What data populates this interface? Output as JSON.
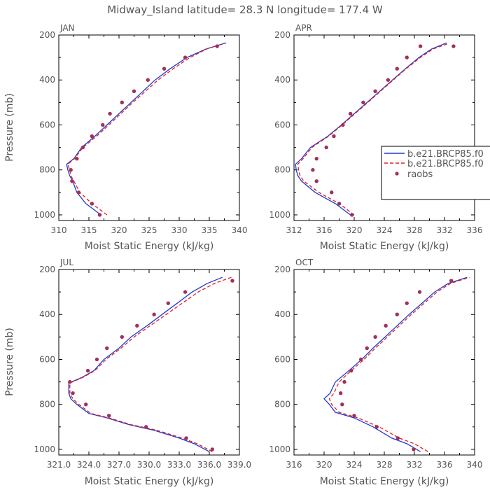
{
  "figure": {
    "title": "Midway_Island  latitude= 28.3 N longitude= 177.4 W"
  },
  "legend": {
    "items": [
      {
        "label": "b.e21.BRCP85.f0",
        "style": "solid",
        "color": "#1f3ad1"
      },
      {
        "label": "b.e21.BRCP85.f0",
        "style": "dashed",
        "color": "#e02020"
      },
      {
        "label": "raobs",
        "style": "dots",
        "color": "#a0305a"
      }
    ]
  },
  "colors": {
    "model1": "#1f3ad1",
    "model2": "#e02020",
    "obs": "#a0305a",
    "axis": "#000000",
    "text": "#555555"
  },
  "chart_data": [
    {
      "type": "line",
      "panel": "JAN",
      "xlabel": "Moist Static Energy (kJ/kg)",
      "ylabel": "Pressure (mb)",
      "xlim": [
        310,
        340
      ],
      "ylim": [
        1025,
        200
      ],
      "xticks": [
        310,
        315,
        320,
        325,
        330,
        335,
        340
      ],
      "xtick_labels": [
        "310",
        "315",
        "320",
        "325",
        "330",
        "335",
        "340"
      ],
      "yticks": [
        200,
        400,
        600,
        800,
        1000
      ],
      "ytick_labels": [
        "200",
        "400",
        "600",
        "800",
        "1000"
      ],
      "series": [
        {
          "role": "model1",
          "points": [
            [
              317.0,
              1000
            ],
            [
              314.5,
              950
            ],
            [
              313.0,
              900
            ],
            [
              312.3,
              850
            ],
            [
              311.8,
              825
            ],
            [
              311.5,
              800
            ],
            [
              311.3,
              775
            ],
            [
              312.5,
              750
            ],
            [
              313.8,
              700
            ],
            [
              316.0,
              650
            ],
            [
              318.0,
              600
            ],
            [
              320.0,
              550
            ],
            [
              322.0,
              500
            ],
            [
              324.0,
              450
            ],
            [
              326.0,
              400
            ],
            [
              328.5,
              350
            ],
            [
              331.3,
              300
            ],
            [
              334.5,
              262
            ],
            [
              337.8,
              235
            ]
          ]
        },
        {
          "role": "model2",
          "points": [
            [
              318.0,
              1000
            ],
            [
              315.5,
              950
            ],
            [
              313.5,
              900
            ],
            [
              312.5,
              850
            ],
            [
              312.0,
              825
            ],
            [
              311.8,
              800
            ],
            [
              311.5,
              775
            ],
            [
              312.6,
              750
            ],
            [
              314.0,
              700
            ],
            [
              316.3,
              650
            ],
            [
              318.3,
              600
            ],
            [
              320.3,
              550
            ],
            [
              322.3,
              500
            ],
            [
              324.4,
              450
            ],
            [
              326.5,
              400
            ],
            [
              329.0,
              350
            ],
            [
              331.8,
              300
            ],
            [
              334.6,
              262
            ],
            [
              337.2,
              240
            ]
          ]
        },
        {
          "role": "obs",
          "points": [
            [
              316.8,
              1000
            ],
            [
              315.5,
              950
            ],
            [
              313.3,
              900
            ],
            [
              312.2,
              850
            ],
            [
              312.0,
              800
            ],
            [
              313.0,
              750
            ],
            [
              314.0,
              700
            ],
            [
              315.5,
              650
            ],
            [
              317.3,
              600
            ],
            [
              318.5,
              550
            ],
            [
              320.5,
              500
            ],
            [
              322.5,
              450
            ],
            [
              324.8,
              400
            ],
            [
              327.5,
              350
            ],
            [
              331.0,
              300
            ],
            [
              336.3,
              250
            ]
          ]
        }
      ]
    },
    {
      "type": "line",
      "panel": "APR",
      "xlabel": "Moist Static Energy (kJ/kg)",
      "ylabel": "",
      "xlim": [
        312,
        336
      ],
      "ylim": [
        1025,
        200
      ],
      "xticks": [
        312,
        316,
        320,
        324,
        328,
        332,
        336
      ],
      "xtick_labels": [
        "312",
        "316",
        "320",
        "324",
        "328",
        "332",
        "336"
      ],
      "yticks": [
        200,
        400,
        600,
        800,
        1000
      ],
      "ytick_labels": [
        "200",
        "400",
        "600",
        "800",
        "1000"
      ],
      "series": [
        {
          "role": "model1",
          "points": [
            [
              319.5,
              1000
            ],
            [
              317.5,
              950
            ],
            [
              314.8,
              900
            ],
            [
              313.0,
              850
            ],
            [
              312.5,
              825
            ],
            [
              312.3,
              800
            ],
            [
              312.2,
              775
            ],
            [
              313.0,
              750
            ],
            [
              314.2,
              700
            ],
            [
              316.5,
              650
            ],
            [
              318.3,
              600
            ],
            [
              320.0,
              550
            ],
            [
              321.7,
              500
            ],
            [
              323.4,
              450
            ],
            [
              325.1,
              400
            ],
            [
              326.8,
              350
            ],
            [
              328.6,
              300
            ],
            [
              330.3,
              262
            ],
            [
              332.3,
              235
            ]
          ]
        },
        {
          "role": "model2",
          "points": [
            [
              320.0,
              1000
            ],
            [
              318.0,
              950
            ],
            [
              315.3,
              900
            ],
            [
              313.3,
              850
            ],
            [
              312.8,
              825
            ],
            [
              312.6,
              800
            ],
            [
              312.5,
              775
            ],
            [
              313.2,
              750
            ],
            [
              314.4,
              700
            ],
            [
              316.6,
              650
            ],
            [
              318.4,
              600
            ],
            [
              320.1,
              550
            ],
            [
              321.8,
              500
            ],
            [
              323.5,
              450
            ],
            [
              325.2,
              400
            ],
            [
              326.9,
              350
            ],
            [
              328.8,
              300
            ],
            [
              330.5,
              262
            ],
            [
              332.5,
              238
            ]
          ]
        },
        {
          "role": "obs",
          "points": [
            [
              319.7,
              1000
            ],
            [
              318.0,
              950
            ],
            [
              317.0,
              900
            ],
            [
              315.0,
              850
            ],
            [
              314.5,
              800
            ],
            [
              315.0,
              750
            ],
            [
              316.3,
              700
            ],
            [
              317.3,
              650
            ],
            [
              318.5,
              600
            ],
            [
              319.5,
              550
            ],
            [
              321.2,
              500
            ],
            [
              322.8,
              450
            ],
            [
              324.5,
              400
            ],
            [
              325.7,
              350
            ],
            [
              327.0,
              300
            ],
            [
              328.8,
              250
            ],
            [
              333.2,
              250
            ]
          ]
        }
      ]
    },
    {
      "type": "line",
      "panel": "JUL",
      "xlabel": "Moist Static Energy (kJ/kg)",
      "ylabel": "Pressure (mb)",
      "xlim": [
        321,
        339
      ],
      "ylim": [
        1025,
        200
      ],
      "xticks": [
        321,
        324,
        327,
        330,
        333,
        336,
        339
      ],
      "xtick_labels": [
        "321.0",
        "324.0",
        "327.0",
        "330.0",
        "333.0",
        "336.0",
        "339.0"
      ],
      "yticks": [
        200,
        400,
        600,
        800,
        1000
      ],
      "ytick_labels": [
        "200",
        "400",
        "600",
        "800",
        "1000"
      ],
      "series": [
        {
          "role": "model1",
          "points": [
            [
              336.0,
              1010
            ],
            [
              334.5,
              975
            ],
            [
              333.0,
              950
            ],
            [
              330.5,
              915
            ],
            [
              328.0,
              890
            ],
            [
              325.8,
              860
            ],
            [
              324.0,
              840
            ],
            [
              322.8,
              800
            ],
            [
              322.2,
              775
            ],
            [
              322.0,
              750
            ],
            [
              322.0,
              705
            ],
            [
              323.3,
              680
            ],
            [
              324.5,
              650
            ],
            [
              325.5,
              600
            ],
            [
              327.0,
              550
            ],
            [
              328.2,
              500
            ],
            [
              329.8,
              450
            ],
            [
              331.3,
              400
            ],
            [
              332.8,
              350
            ],
            [
              334.3,
              300
            ],
            [
              335.8,
              262
            ],
            [
              337.3,
              235
            ]
          ]
        },
        {
          "role": "model2",
          "points": [
            [
              336.3,
              1010
            ],
            [
              334.8,
              975
            ],
            [
              333.3,
              950
            ],
            [
              330.8,
              915
            ],
            [
              328.2,
              890
            ],
            [
              326.0,
              860
            ],
            [
              324.2,
              840
            ],
            [
              323.0,
              800
            ],
            [
              322.4,
              775
            ],
            [
              322.1,
              750
            ],
            [
              322.1,
              705
            ],
            [
              323.4,
              680
            ],
            [
              324.6,
              650
            ],
            [
              325.7,
              600
            ],
            [
              327.2,
              550
            ],
            [
              328.5,
              500
            ],
            [
              330.1,
              450
            ],
            [
              331.7,
              400
            ],
            [
              333.3,
              350
            ],
            [
              334.9,
              300
            ],
            [
              336.5,
              262
            ],
            [
              338.2,
              235
            ]
          ]
        },
        {
          "role": "obs",
          "points": [
            [
              336.3,
              1000
            ],
            [
              333.7,
              950
            ],
            [
              329.7,
              900
            ],
            [
              326.0,
              850
            ],
            [
              323.7,
              800
            ],
            [
              322.4,
              750
            ],
            [
              322.1,
              700
            ],
            [
              323.9,
              650
            ],
            [
              324.8,
              600
            ],
            [
              325.8,
              550
            ],
            [
              327.3,
              500
            ],
            [
              328.8,
              450
            ],
            [
              330.5,
              400
            ],
            [
              331.9,
              350
            ],
            [
              333.6,
              300
            ],
            [
              338.3,
              250
            ]
          ]
        }
      ]
    },
    {
      "type": "line",
      "panel": "OCT",
      "xlabel": "Moist Static Energy (kJ/kg)",
      "ylabel": "",
      "xlim": [
        316,
        340
      ],
      "ylim": [
        1025,
        200
      ],
      "xticks": [
        316,
        320,
        324,
        328,
        332,
        336,
        340
      ],
      "xtick_labels": [
        "316",
        "320",
        "324",
        "328",
        "332",
        "336",
        "340"
      ],
      "yticks": [
        200,
        400,
        600,
        800,
        1000
      ],
      "ytick_labels": [
        "200",
        "400",
        "600",
        "800",
        "1000"
      ],
      "series": [
        {
          "role": "model1",
          "points": [
            [
              332.8,
              1010
            ],
            [
              331.0,
              975
            ],
            [
              329.0,
              950
            ],
            [
              326.5,
              900
            ],
            [
              324.0,
              860
            ],
            [
              321.5,
              835
            ],
            [
              320.7,
              800
            ],
            [
              320.0,
              775
            ],
            [
              320.8,
              750
            ],
            [
              321.5,
              700
            ],
            [
              323.3,
              650
            ],
            [
              325.0,
              600
            ],
            [
              326.5,
              550
            ],
            [
              328.1,
              500
            ],
            [
              329.7,
              450
            ],
            [
              331.3,
              400
            ],
            [
              333.0,
              350
            ],
            [
              334.7,
              300
            ],
            [
              336.5,
              262
            ],
            [
              339.0,
              235
            ]
          ]
        },
        {
          "role": "model2",
          "points": [
            [
              333.8,
              1010
            ],
            [
              332.0,
              975
            ],
            [
              330.0,
              950
            ],
            [
              327.3,
              900
            ],
            [
              324.5,
              860
            ],
            [
              322.0,
              835
            ],
            [
              321.0,
              800
            ],
            [
              320.7,
              775
            ],
            [
              321.3,
              750
            ],
            [
              322.0,
              700
            ],
            [
              323.6,
              650
            ],
            [
              325.3,
              600
            ],
            [
              326.8,
              550
            ],
            [
              328.4,
              500
            ],
            [
              330.0,
              450
            ],
            [
              331.6,
              400
            ],
            [
              333.3,
              350
            ],
            [
              335.0,
              300
            ],
            [
              336.8,
              262
            ],
            [
              339.3,
              235
            ]
          ]
        },
        {
          "role": "obs",
          "points": [
            [
              331.9,
              1000
            ],
            [
              329.8,
              950
            ],
            [
              327.0,
              900
            ],
            [
              324.0,
              850
            ],
            [
              322.4,
              800
            ],
            [
              322.2,
              750
            ],
            [
              322.7,
              700
            ],
            [
              323.6,
              650
            ],
            [
              324.9,
              600
            ],
            [
              325.7,
              550
            ],
            [
              326.8,
              500
            ],
            [
              328.2,
              450
            ],
            [
              329.7,
              400
            ],
            [
              331.0,
              350
            ],
            [
              332.7,
              300
            ],
            [
              336.9,
              250
            ]
          ]
        }
      ]
    }
  ]
}
